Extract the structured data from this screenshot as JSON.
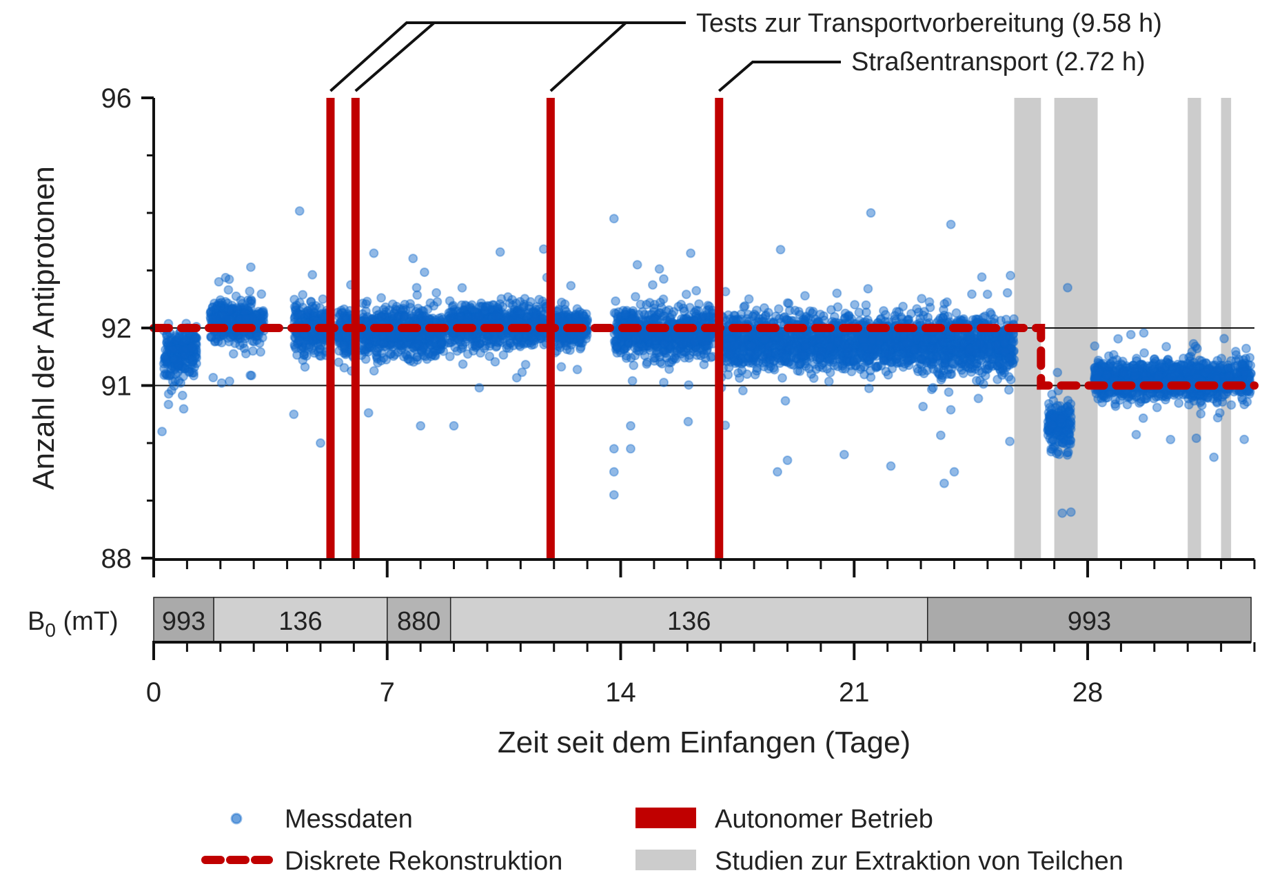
{
  "chart_data": {
    "type": "scatter",
    "title": "",
    "xlabel": "Zeit seit dem Einfangen (Tage)",
    "ylabel": "Anzahl der Antiprotonen",
    "xlim": [
      0,
      33
    ],
    "ylim": [
      88,
      96
    ],
    "x_ticks": [
      {
        "value": 0,
        "label": "0"
      },
      {
        "value": 7,
        "label": "7"
      },
      {
        "value": 14,
        "label": "14"
      },
      {
        "value": 21,
        "label": "21"
      },
      {
        "value": 28,
        "label": "28"
      }
    ],
    "y_ticks": [
      {
        "value": 88,
        "label": "88"
      },
      {
        "value": 91,
        "label": "91"
      },
      {
        "value": 92,
        "label": "92"
      },
      {
        "value": 96,
        "label": "96"
      }
    ],
    "reference_lines_y": [
      91,
      92
    ],
    "series": [
      {
        "name": "Messdaten",
        "kind": "scatter",
        "color": "#0a64c8",
        "clusters": [
          {
            "x": [
              0.3,
              1.3
            ],
            "center": 91.55,
            "spread": 0.45
          },
          {
            "x": [
              1.7,
              3.3
            ],
            "center": 92.1,
            "spread": 0.35
          },
          {
            "x": [
              4.2,
              5.2
            ],
            "center": 92.0,
            "spread": 0.5
          },
          {
            "x": [
              5.5,
              6.0
            ],
            "center": 91.9,
            "spread": 0.45
          },
          {
            "x": [
              6.2,
              7.5
            ],
            "center": 91.95,
            "spread": 0.45
          },
          {
            "x": [
              7.5,
              8.7
            ],
            "center": 91.9,
            "spread": 0.45
          },
          {
            "x": [
              8.8,
              11.8
            ],
            "center": 92.05,
            "spread": 0.4
          },
          {
            "x": [
              12.0,
              13.0
            ],
            "center": 92.0,
            "spread": 0.35
          },
          {
            "x": [
              13.8,
              16.8
            ],
            "center": 91.9,
            "spread": 0.45
          },
          {
            "x": [
              17.0,
              23.0
            ],
            "center": 91.75,
            "spread": 0.5
          },
          {
            "x": [
              23.0,
              25.8
            ],
            "center": 91.7,
            "spread": 0.55
          },
          {
            "x": [
              26.8,
              27.5
            ],
            "center": 90.3,
            "spread": 0.45
          },
          {
            "x": [
              28.2,
              32.9
            ],
            "center": 91.1,
            "spread": 0.35
          }
        ],
        "outliers": [
          {
            "x": 0.25,
            "y": 90.2
          },
          {
            "x": 13.8,
            "y": 93.9
          },
          {
            "x": 21.5,
            "y": 94.0
          },
          {
            "x": 13.8,
            "y": 89.5
          },
          {
            "x": 13.8,
            "y": 89.1
          },
          {
            "x": 13.8,
            "y": 89.9
          },
          {
            "x": 14.3,
            "y": 89.9
          },
          {
            "x": 14.3,
            "y": 90.3
          },
          {
            "x": 9.0,
            "y": 90.3
          },
          {
            "x": 8.0,
            "y": 90.3
          },
          {
            "x": 27.5,
            "y": 88.8
          },
          {
            "x": 27.4,
            "y": 92.7
          },
          {
            "x": 18.7,
            "y": 89.5
          },
          {
            "x": 19.0,
            "y": 89.7
          },
          {
            "x": 20.7,
            "y": 89.8
          },
          {
            "x": 22.1,
            "y": 89.6
          },
          {
            "x": 23.7,
            "y": 89.3
          },
          {
            "x": 24.0,
            "y": 89.5
          },
          {
            "x": 23.9,
            "y": 93.8
          },
          {
            "x": 16.1,
            "y": 93.3
          },
          {
            "x": 6.6,
            "y": 93.3
          },
          {
            "x": 4.2,
            "y": 90.5
          },
          {
            "x": 5.0,
            "y": 90.0
          },
          {
            "x": 14.5,
            "y": 93.1
          }
        ]
      },
      {
        "name": "Diskrete Rekonstruktion",
        "kind": "step",
        "color": "#c00000",
        "x": [
          0,
          26.6,
          26.6,
          33
        ],
        "y": [
          92,
          92,
          91,
          91
        ]
      }
    ],
    "autonomous_periods": {
      "name": "Autonomer Betrieb",
      "color": "#c00000",
      "x": [
        5.3,
        6.05,
        11.9,
        16.95
      ]
    },
    "extraction_studies": {
      "name": "Studien zur Extraktion von Teilchen",
      "color": "#cccccc",
      "intervals": [
        [
          25.8,
          26.6
        ],
        [
          27.0,
          28.3
        ],
        [
          31.0,
          31.4
        ],
        [
          32.0,
          32.3
        ]
      ]
    },
    "annotations": [
      {
        "text": "Tests zur Transportvorbereitung (9.58 h)",
        "points_to_x": [
          5.3,
          6.05,
          11.9
        ]
      },
      {
        "text": "Straßentransport (2.72 h)",
        "points_to_x": [
          16.95
        ]
      }
    ],
    "field_strip": {
      "label_main": "B",
      "label_sub": "0",
      "label_unit": "(mT)",
      "segments": [
        {
          "from": 0,
          "to": 1.8,
          "label": "993",
          "color": "#aaaaaa"
        },
        {
          "from": 1.8,
          "to": 7.0,
          "label": "136",
          "color": "#d0d0d0"
        },
        {
          "from": 7.0,
          "to": 8.9,
          "label": "880",
          "color": "#b4b4b4"
        },
        {
          "from": 8.9,
          "to": 23.2,
          "label": "136",
          "color": "#d0d0d0"
        },
        {
          "from": 23.2,
          "to": 32.9,
          "label": "993",
          "color": "#aaaaaa"
        }
      ]
    },
    "legend": {
      "placement": "bottom",
      "items": [
        {
          "label": "Messdaten",
          "symbol": "dot"
        },
        {
          "label": "Autonomer Betrieb",
          "symbol": "bar"
        },
        {
          "label": "Diskrete Rekonstruktion",
          "symbol": "dash"
        },
        {
          "label": "Studien zur Extraktion von Teilchen",
          "symbol": "band"
        }
      ]
    }
  }
}
